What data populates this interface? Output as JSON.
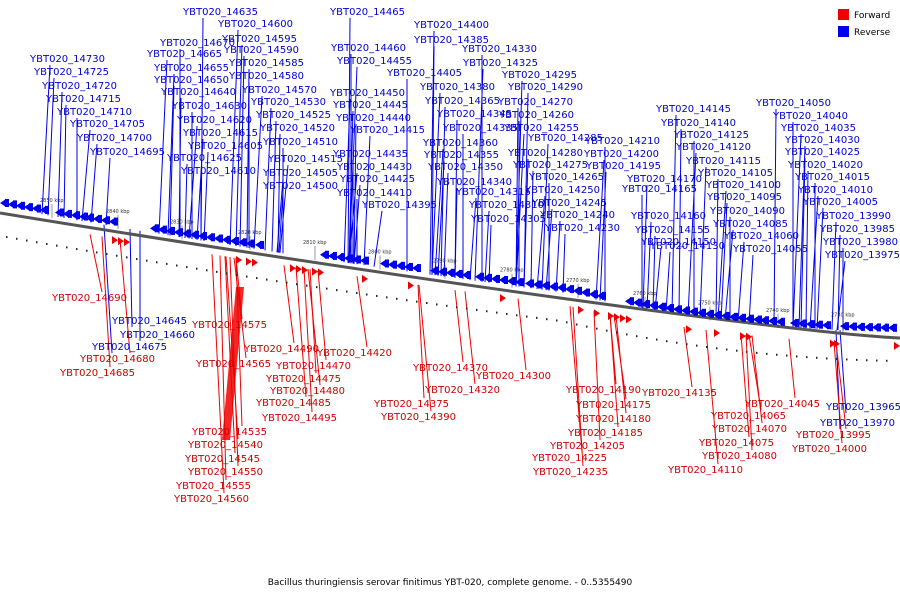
{
  "caption": "Bacillus thuringiensis serovar finitimus YBT-020, complete genome. - 0..5355490",
  "legend": [
    {
      "name": "Forward",
      "color": "#ee0000"
    },
    {
      "name": "Reverse",
      "color": "#0000ee"
    }
  ],
  "ticks": [
    "2850 kbp",
    "2840 kbp",
    "2830 kbp",
    "2820 kbp",
    "2810 kbp",
    "2800 kbp",
    "2790 kbp",
    "2780 kbp",
    "2770 kbp",
    "2760 kbp",
    "2750 kbp",
    "2740 kbp",
    "2730 kbp"
  ],
  "reverse_genes": [
    "YBT020_14730",
    "YBT020_14725",
    "YBT020_14720",
    "YBT020_14715",
    "YBT020_14710",
    "YBT020_14705",
    "YBT020_14700",
    "YBT020_14695",
    "YBT020_14635",
    "YBT020_14670",
    "YBT020_14665",
    "YBT020_14655",
    "YBT020_14650",
    "YBT020_14640",
    "YBT020_14630",
    "YBT020_14620",
    "YBT020_14615",
    "YBT020_14605",
    "YBT020_14625",
    "YBT020_14610",
    "YBT020_14600",
    "YBT020_14595",
    "YBT020_14590",
    "YBT020_14585",
    "YBT020_14580",
    "YBT020_14570",
    "YBT020_14530",
    "YBT020_14525",
    "YBT020_14520",
    "YBT020_14510",
    "YBT020_14515",
    "YBT020_14505",
    "YBT020_14500",
    "YBT020_14465",
    "YBT020_14460",
    "YBT020_14455",
    "YBT020_14450",
    "YBT020_14445",
    "YBT020_14440",
    "YBT020_14435",
    "YBT020_14430",
    "YBT020_14425",
    "YBT020_14400",
    "YBT020_14385",
    "YBT020_14405",
    "YBT020_14380",
    "YBT020_14415",
    "YBT020_14365",
    "YBT020_14345",
    "YBT020_14335",
    "YBT020_14360",
    "YBT020_14355",
    "YBT020_14350",
    "YBT020_14340",
    "YBT020_14410",
    "YBT020_14395",
    "YBT020_14315",
    "YBT020_14310",
    "YBT020_14305",
    "YBT020_14330",
    "YBT020_14325",
    "YBT020_14295",
    "YBT020_14290",
    "YBT020_14270",
    "YBT020_14260",
    "YBT020_14255",
    "YBT020_14285",
    "YBT020_14280",
    "YBT020_14275",
    "YBT020_14265",
    "YBT020_14250",
    "YBT020_14245",
    "YBT020_14240",
    "YBT020_14230",
    "YBT020_14210",
    "YBT020_14200",
    "YBT020_14195",
    "YBT020_14145",
    "YBT020_14140",
    "YBT020_14125",
    "YBT020_14120",
    "YBT020_14115",
    "YBT020_14170",
    "YBT020_14105",
    "YBT020_14165",
    "YBT020_14100",
    "YBT020_14095",
    "YBT020_14160",
    "YBT020_14155",
    "YBT020_14090",
    "YBT020_14085",
    "YBT020_14150",
    "YBT020_14130",
    "YBT020_14050",
    "YBT020_14040",
    "YBT020_14035",
    "YBT020_14030",
    "YBT020_14025",
    "YBT020_14020",
    "YBT020_14015",
    "YBT020_14010",
    "YBT020_14005",
    "YBT020_13990",
    "YBT020_13985",
    "YBT020_13980",
    "YBT020_13975",
    "YBT020_14060",
    "YBT020_14055",
    "YBT020_14645",
    "YBT020_14660",
    "YBT020_14675",
    "YBT020_13965",
    "YBT020_13970"
  ],
  "forward_genes": [
    "YBT020_14690",
    "YBT020_14680",
    "YBT020_14685",
    "YBT020_14575",
    "YBT020_14565",
    "YBT020_14490",
    "YBT020_14470",
    "YBT020_14475",
    "YBT020_14480",
    "YBT020_14485",
    "YBT020_14495",
    "YBT020_14535",
    "YBT020_14540",
    "YBT020_14545",
    "YBT020_14550",
    "YBT020_14555",
    "YBT020_14560",
    "YBT020_14420",
    "YBT020_14370",
    "YBT020_14375",
    "YBT020_14390",
    "YBT020_14320",
    "YBT020_14300",
    "YBT020_14190",
    "YBT020_14175",
    "YBT020_14180",
    "YBT020_14185",
    "YBT020_14205",
    "YBT020_14225",
    "YBT020_14235",
    "YBT020_14135",
    "YBT020_14045",
    "YBT020_14065",
    "YBT020_14070",
    "YBT020_14075",
    "YBT020_14080",
    "YBT020_14110",
    "YBT020_13995",
    "YBT020_14000"
  ]
}
